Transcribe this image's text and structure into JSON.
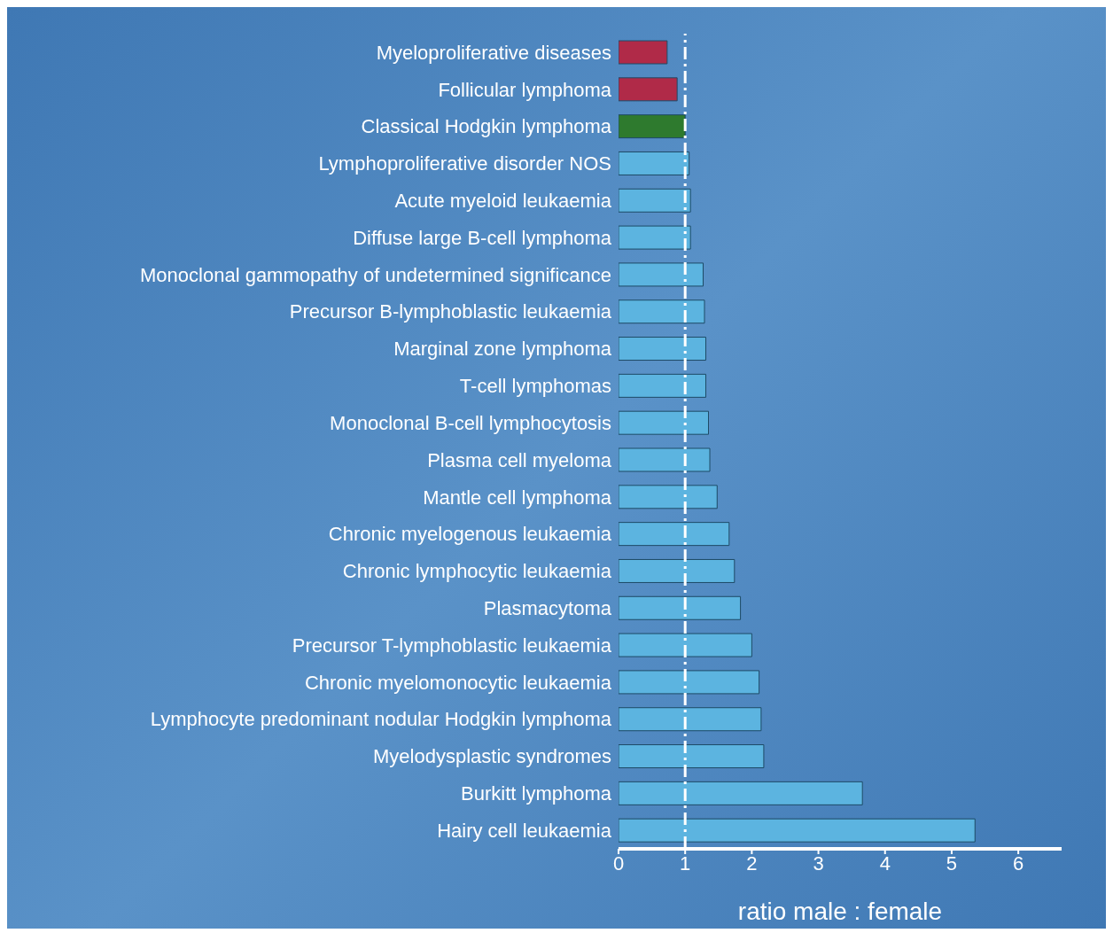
{
  "chart_data": {
    "type": "bar",
    "orientation": "horizontal",
    "xlabel": "ratio male : female",
    "categories": [
      "Myeloproliferative diseases",
      "Follicular lymphoma",
      "Classical Hodgkin lymphoma",
      "Lymphoproliferative disorder NOS",
      "Acute myeloid leukaemia",
      "Diffuse large B-cell lymphoma",
      "Monoclonal gammopathy of undetermined significance",
      "Precursor B-lymphoblastic leukaemia",
      "Marginal zone lymphoma",
      "T-cell lymphomas",
      "Monoclonal B-cell lymphocytosis",
      "Plasma cell myeloma",
      "Mantle cell lymphoma",
      "Chronic myelogenous leukaemia",
      "Chronic lymphocytic leukaemia",
      "Plasmacytoma",
      "Precursor T-lymphoblastic leukaemia",
      "Chronic myelomonocytic leukaemia",
      "Lymphocyte predominant nodular Hodgkin lymphoma",
      "Myelodysplastic syndromes",
      "Burkitt lymphoma",
      "Hairy cell leukaemia"
    ],
    "values": [
      0.73,
      0.88,
      1.0,
      1.06,
      1.08,
      1.08,
      1.27,
      1.29,
      1.31,
      1.31,
      1.35,
      1.37,
      1.48,
      1.66,
      1.74,
      1.83,
      2.0,
      2.11,
      2.14,
      2.18,
      3.66,
      5.35
    ],
    "colors": [
      "#b02a48",
      "#b02a48",
      "#2e7a2e",
      "#5cb4e0",
      "#5cb4e0",
      "#5cb4e0",
      "#5cb4e0",
      "#5cb4e0",
      "#5cb4e0",
      "#5cb4e0",
      "#5cb4e0",
      "#5cb4e0",
      "#5cb4e0",
      "#5cb4e0",
      "#5cb4e0",
      "#5cb4e0",
      "#5cb4e0",
      "#5cb4e0",
      "#5cb4e0",
      "#5cb4e0",
      "#5cb4e0",
      "#5cb4e0"
    ],
    "xlim": [
      0,
      6.65
    ],
    "xticks": [
      0,
      1,
      2,
      3,
      4,
      5,
      6
    ],
    "ref_lines": [
      {
        "axis": "x",
        "value": 1,
        "color": "#ffffff",
        "line_style": "dashdot"
      }
    ],
    "grid": false,
    "legend": false
  }
}
